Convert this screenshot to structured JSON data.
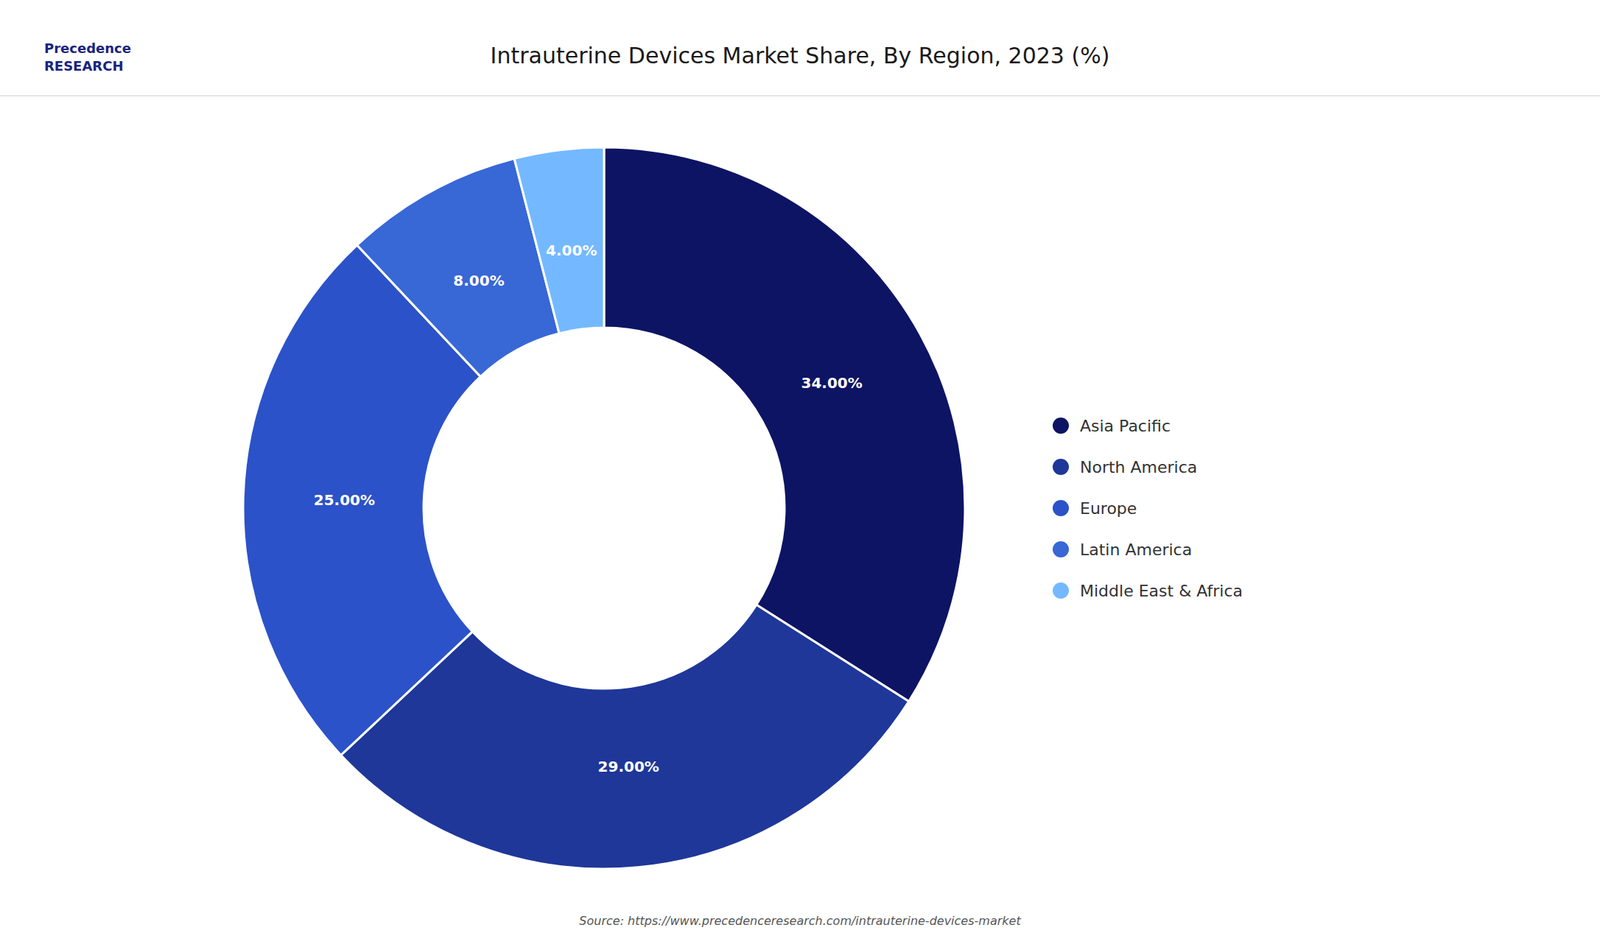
{
  "chart_data": {
    "type": "donut",
    "title": "Intrauterine Devices Market Share, By Region, 2023 (%)",
    "categories": [
      "Asia Pacific",
      "North America",
      "Europe",
      "Latin America",
      "Middle East & Africa"
    ],
    "values": [
      34,
      29,
      25,
      8,
      4
    ],
    "value_labels": [
      "34.00%",
      "29.00%",
      "25.00%",
      "8.00%",
      "4.00%"
    ],
    "colors": [
      "#0d1464",
      "#1e3799",
      "#2b52c8",
      "#3867d6",
      "#74b9ff"
    ],
    "data_labels": true,
    "legend": "right",
    "annotations": [
      "Precedence",
      "RESEARCH",
      "Source: https://www.precedenceresearch.com/intrauterine-devices-market"
    ]
  }
}
